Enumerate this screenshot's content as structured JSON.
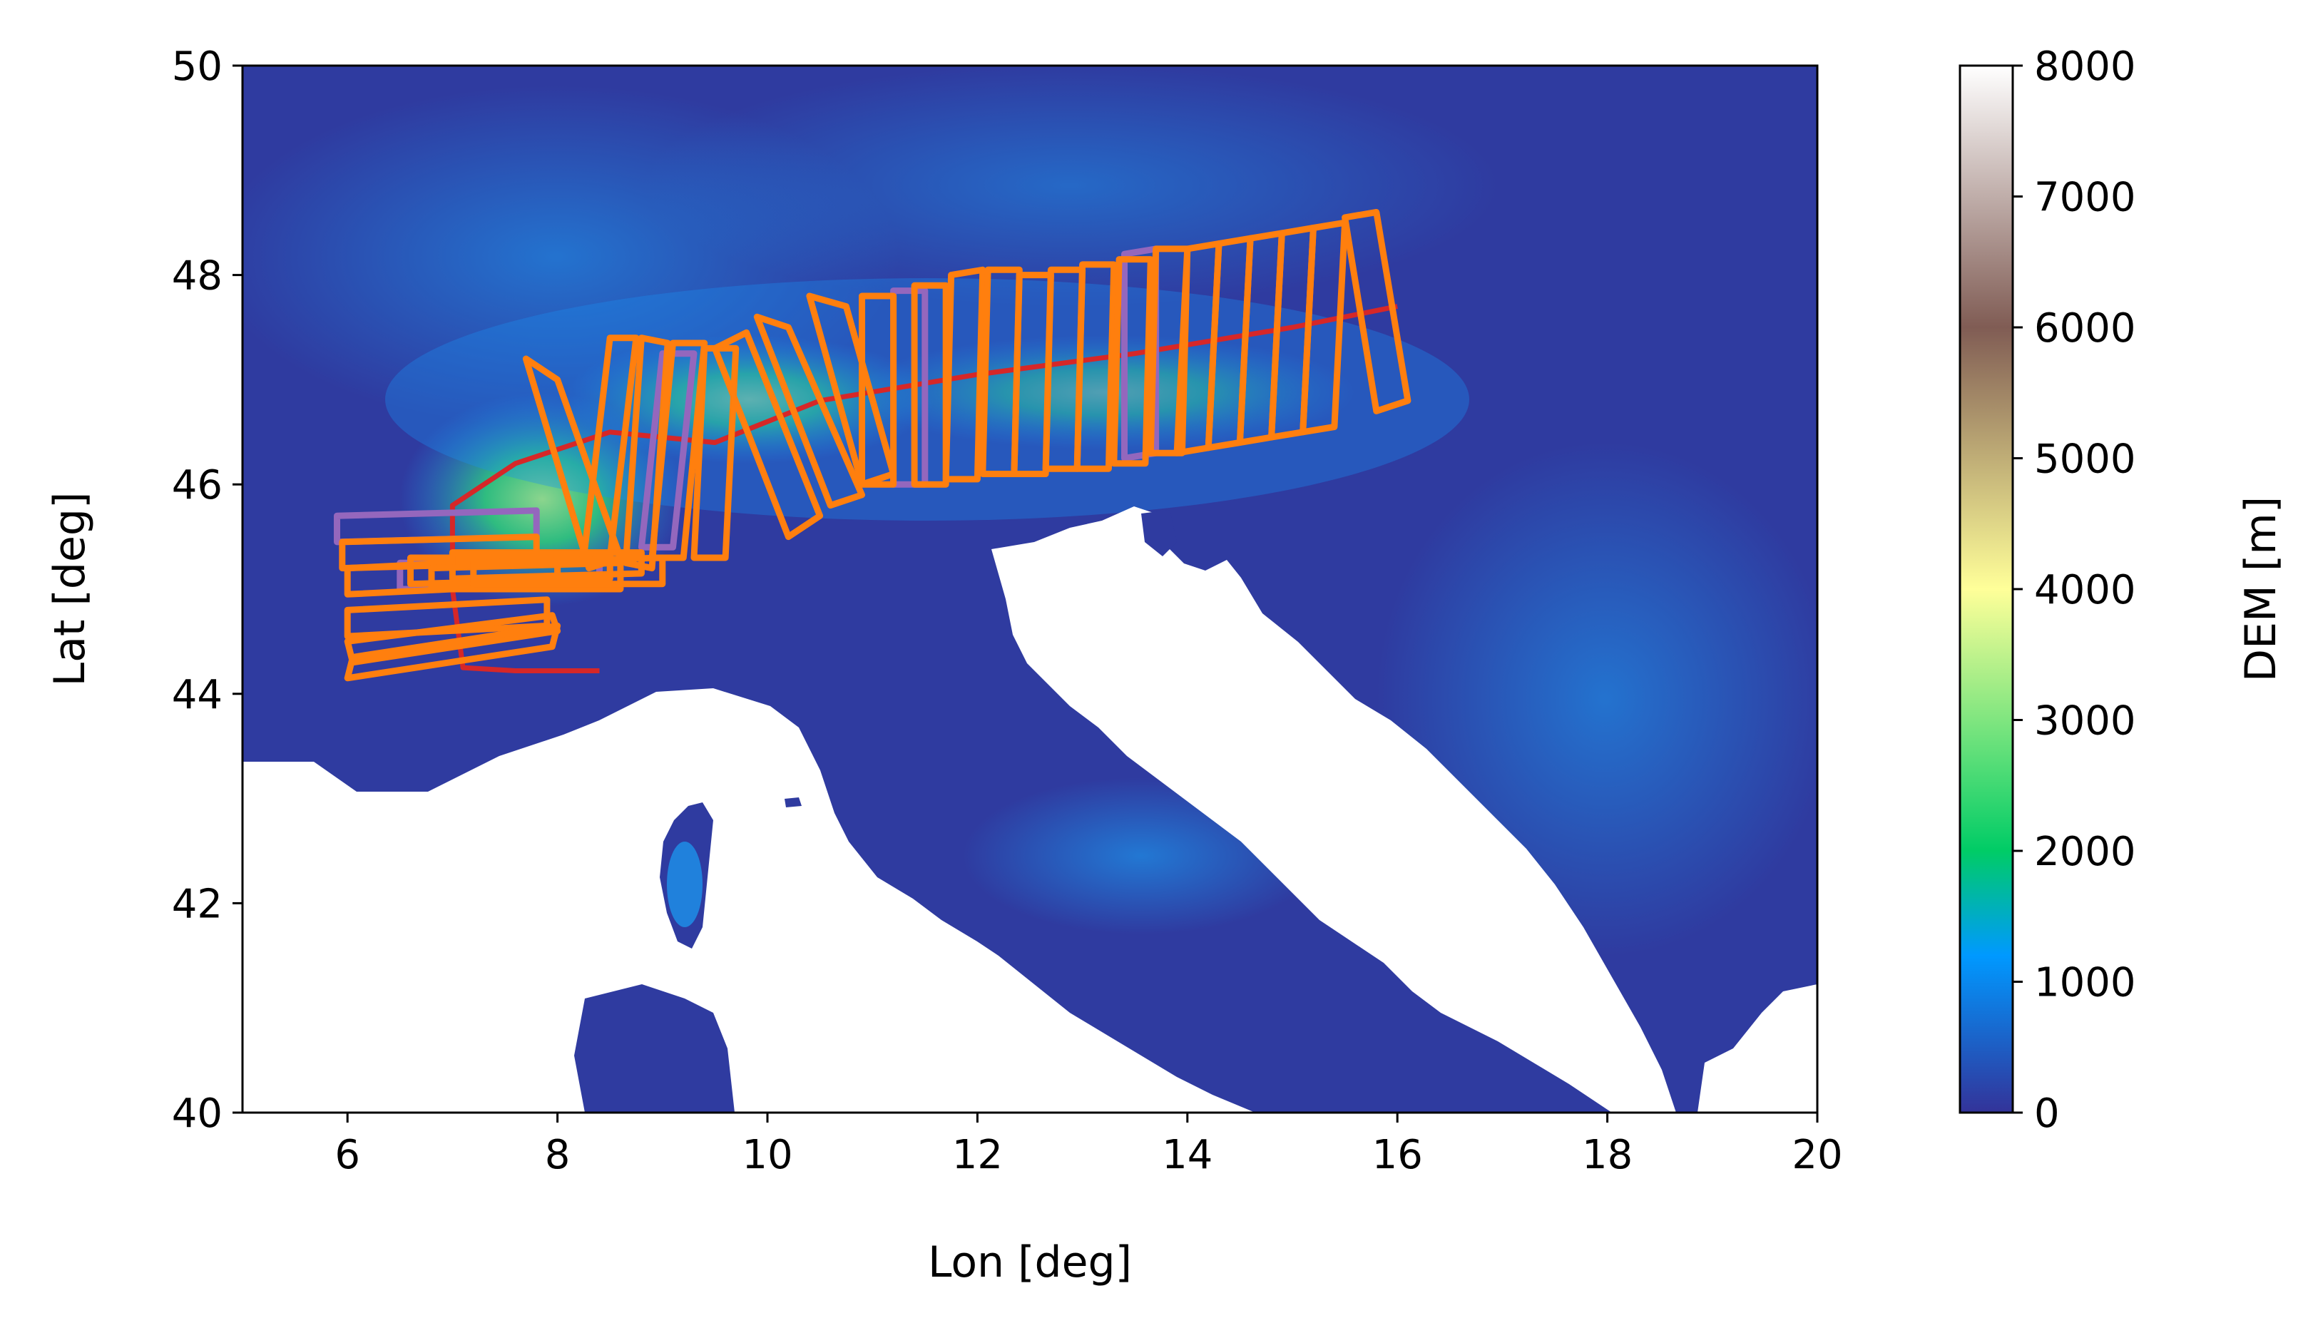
{
  "chart_data": {
    "type": "map",
    "xlabel": "Lon [deg]",
    "ylabel": "Lat [deg]",
    "xlim": [
      5,
      20
    ],
    "ylim": [
      40,
      50
    ],
    "xticks": [
      6,
      8,
      10,
      12,
      14,
      16,
      18,
      20
    ],
    "yticks": [
      40,
      42,
      44,
      46,
      48,
      50
    ],
    "colorbar": {
      "label": "DEM [m]",
      "range": [
        0,
        8000
      ],
      "ticks": [
        0,
        1000,
        2000,
        3000,
        4000,
        5000,
        6000,
        7000,
        8000
      ],
      "colormap": "terrain",
      "stops": [
        {
          "value": 0,
          "color": "#333399"
        },
        {
          "value": 1200,
          "color": "#0099ff"
        },
        {
          "value": 2000,
          "color": "#00cc66"
        },
        {
          "value": 4000,
          "color": "#ffff99"
        },
        {
          "value": 6000,
          "color": "#805c54"
        },
        {
          "value": 8000,
          "color": "#ffffff"
        }
      ]
    },
    "colors": {
      "frames": "#ff7f0e",
      "frames_alt": "#9467bd",
      "ground_track": "#d62728",
      "sea": "#ffffff",
      "lowland": "#2f3ba0"
    },
    "ground_track": [
      [
        8.4,
        44.22
      ],
      [
        7.6,
        44.22
      ],
      [
        7.1,
        44.25
      ],
      [
        7.0,
        45.0
      ],
      [
        7.0,
        45.8
      ],
      [
        7.6,
        46.2
      ],
      [
        8.5,
        46.5
      ],
      [
        9.5,
        46.4
      ],
      [
        10.5,
        46.8
      ],
      [
        12.0,
        47.05
      ],
      [
        13.5,
        47.25
      ],
      [
        15.0,
        47.5
      ],
      [
        16.0,
        47.7
      ]
    ],
    "frames_main": [
      [
        [
          10.4,
          47.8
        ],
        [
          10.75,
          47.7
        ],
        [
          11.2,
          46.1
        ],
        [
          10.9,
          46.0
        ]
      ],
      [
        [
          10.9,
          47.8
        ],
        [
          11.2,
          47.8
        ],
        [
          11.2,
          46.0
        ],
        [
          10.9,
          46.0
        ]
      ],
      [
        [
          11.4,
          47.9
        ],
        [
          11.7,
          47.9
        ],
        [
          11.7,
          46.0
        ],
        [
          11.4,
          46.0
        ]
      ],
      [
        [
          11.75,
          48.0
        ],
        [
          12.05,
          48.05
        ],
        [
          12.0,
          46.05
        ],
        [
          11.7,
          46.05
        ]
      ],
      [
        [
          12.1,
          48.05
        ],
        [
          12.4,
          48.05
        ],
        [
          12.35,
          46.1
        ],
        [
          12.05,
          46.1
        ]
      ],
      [
        [
          12.4,
          48.0
        ],
        [
          12.7,
          48.0
        ],
        [
          12.65,
          46.1
        ],
        [
          12.35,
          46.1
        ]
      ],
      [
        [
          12.7,
          48.05
        ],
        [
          13.0,
          48.05
        ],
        [
          12.95,
          46.15
        ],
        [
          12.65,
          46.15
        ]
      ],
      [
        [
          13.0,
          48.1
        ],
        [
          13.3,
          48.1
        ],
        [
          13.25,
          46.15
        ],
        [
          12.95,
          46.15
        ]
      ],
      [
        [
          13.35,
          48.15
        ],
        [
          13.65,
          48.15
        ],
        [
          13.6,
          46.2
        ],
        [
          13.3,
          46.2
        ]
      ],
      [
        [
          13.7,
          48.25
        ],
        [
          14.0,
          48.25
        ],
        [
          13.95,
          46.3
        ],
        [
          13.65,
          46.3
        ]
      ],
      [
        [
          14.0,
          48.25
        ],
        [
          14.3,
          48.3
        ],
        [
          14.2,
          46.35
        ],
        [
          13.9,
          46.3
        ]
      ],
      [
        [
          14.3,
          48.3
        ],
        [
          14.6,
          48.35
        ],
        [
          14.5,
          46.4
        ],
        [
          14.2,
          46.35
        ]
      ],
      [
        [
          14.6,
          48.35
        ],
        [
          14.9,
          48.4
        ],
        [
          14.8,
          46.45
        ],
        [
          14.5,
          46.4
        ]
      ],
      [
        [
          14.9,
          48.4
        ],
        [
          15.2,
          48.45
        ],
        [
          15.1,
          46.5
        ],
        [
          14.8,
          46.45
        ]
      ],
      [
        [
          15.2,
          48.45
        ],
        [
          15.5,
          48.5
        ],
        [
          15.4,
          46.55
        ],
        [
          15.1,
          46.5
        ]
      ],
      [
        [
          15.5,
          48.55
        ],
        [
          15.8,
          48.6
        ],
        [
          16.1,
          46.8
        ],
        [
          15.8,
          46.7
        ]
      ],
      [
        [
          8.5,
          47.4
        ],
        [
          8.75,
          47.4
        ],
        [
          8.5,
          45.3
        ],
        [
          8.25,
          45.3
        ]
      ],
      [
        [
          8.8,
          47.4
        ],
        [
          9.05,
          47.35
        ],
        [
          8.9,
          45.2
        ],
        [
          8.65,
          45.25
        ]
      ],
      [
        [
          9.1,
          47.35
        ],
        [
          9.4,
          47.35
        ],
        [
          9.2,
          45.3
        ],
        [
          8.9,
          45.3
        ]
      ],
      [
        [
          9.4,
          47.3
        ],
        [
          9.7,
          47.3
        ],
        [
          9.6,
          45.3
        ],
        [
          9.3,
          45.3
        ]
      ],
      [
        [
          7.7,
          47.2
        ],
        [
          8.0,
          47.0
        ],
        [
          8.6,
          45.3
        ],
        [
          8.3,
          45.2
        ]
      ],
      [
        [
          9.5,
          47.3
        ],
        [
          9.8,
          47.45
        ],
        [
          10.5,
          45.7
        ],
        [
          10.2,
          45.5
        ]
      ],
      [
        [
          9.9,
          47.6
        ],
        [
          10.2,
          47.5
        ],
        [
          10.9,
          45.9
        ],
        [
          10.6,
          45.8
        ]
      ],
      [
        [
          5.95,
          45.45
        ],
        [
          7.8,
          45.5
        ],
        [
          7.8,
          45.25
        ],
        [
          5.95,
          45.2
        ]
      ],
      [
        [
          6.0,
          45.2
        ],
        [
          8.0,
          45.3
        ],
        [
          8.0,
          45.05
        ],
        [
          6.0,
          44.95
        ]
      ],
      [
        [
          6.0,
          44.8
        ],
        [
          7.9,
          44.9
        ],
        [
          7.9,
          44.65
        ],
        [
          6.0,
          44.55
        ]
      ],
      [
        [
          6.0,
          44.5
        ],
        [
          7.95,
          44.75
        ],
        [
          8.0,
          44.6
        ],
        [
          6.05,
          44.3
        ]
      ],
      [
        [
          6.05,
          44.35
        ],
        [
          8.0,
          44.65
        ],
        [
          7.95,
          44.45
        ],
        [
          6.0,
          44.15
        ]
      ],
      [
        [
          6.6,
          45.3
        ],
        [
          8.5,
          45.3
        ],
        [
          8.5,
          45.1
        ],
        [
          6.6,
          45.05
        ]
      ],
      [
        [
          7.0,
          45.35
        ],
        [
          8.8,
          45.35
        ],
        [
          8.8,
          45.15
        ],
        [
          7.0,
          45.1
        ]
      ],
      [
        [
          6.8,
          45.2
        ],
        [
          8.6,
          45.25
        ],
        [
          8.6,
          45.0
        ],
        [
          6.8,
          45.0
        ]
      ],
      [
        [
          7.2,
          45.25
        ],
        [
          9.0,
          45.3
        ],
        [
          9.0,
          45.05
        ],
        [
          7.2,
          45.05
        ]
      ]
    ],
    "frames_alt": [
      [
        [
          5.9,
          45.7
        ],
        [
          7.8,
          45.75
        ],
        [
          7.8,
          45.5
        ],
        [
          5.9,
          45.45
        ]
      ],
      [
        [
          6.5,
          45.25
        ],
        [
          8.4,
          45.25
        ],
        [
          8.4,
          45.0
        ],
        [
          6.5,
          45.0
        ]
      ],
      [
        [
          9.0,
          47.25
        ],
        [
          9.3,
          47.25
        ],
        [
          9.1,
          45.4
        ],
        [
          8.8,
          45.4
        ]
      ],
      [
        [
          11.2,
          47.85
        ],
        [
          11.5,
          47.85
        ],
        [
          11.5,
          46.0
        ],
        [
          11.2,
          46.0
        ]
      ],
      [
        [
          13.4,
          48.2
        ],
        [
          13.7,
          48.25
        ],
        [
          13.7,
          46.3
        ],
        [
          13.4,
          46.25
        ]
      ]
    ]
  }
}
